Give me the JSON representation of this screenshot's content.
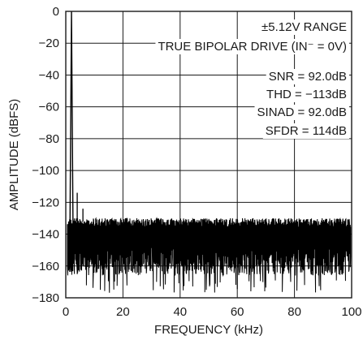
{
  "chart_data": {
    "type": "line",
    "xlabel": "FREQUENCY (kHz)",
    "ylabel": "AMPLITUDE (dBFS)",
    "xlim": [
      0,
      100
    ],
    "ylim": [
      -180,
      0
    ],
    "x_ticks": [
      "0",
      "20",
      "40",
      "60",
      "80",
      "100"
    ],
    "y_ticks": [
      "0",
      "−20",
      "−40",
      "−60",
      "−80",
      "−100",
      "−120",
      "−140",
      "−160",
      "−180"
    ],
    "grid": true,
    "annotations": [
      "±5.12V RANGE",
      "TRUE BIPOLAR DRIVE (IN⁻ = 0V)",
      "SNR = 92.0dB",
      "THD = −113dB",
      "SINAD = 92.0dB",
      "SFDR = 114dB"
    ],
    "fundamental": {
      "x": 2.0,
      "y": 0
    },
    "harmonics": [
      {
        "x": 4.0,
        "y": -114
      },
      {
        "x": 6.0,
        "y": -124
      }
    ],
    "noise_floor": {
      "top": -130,
      "bottom": -177,
      "typical": -145
    }
  }
}
